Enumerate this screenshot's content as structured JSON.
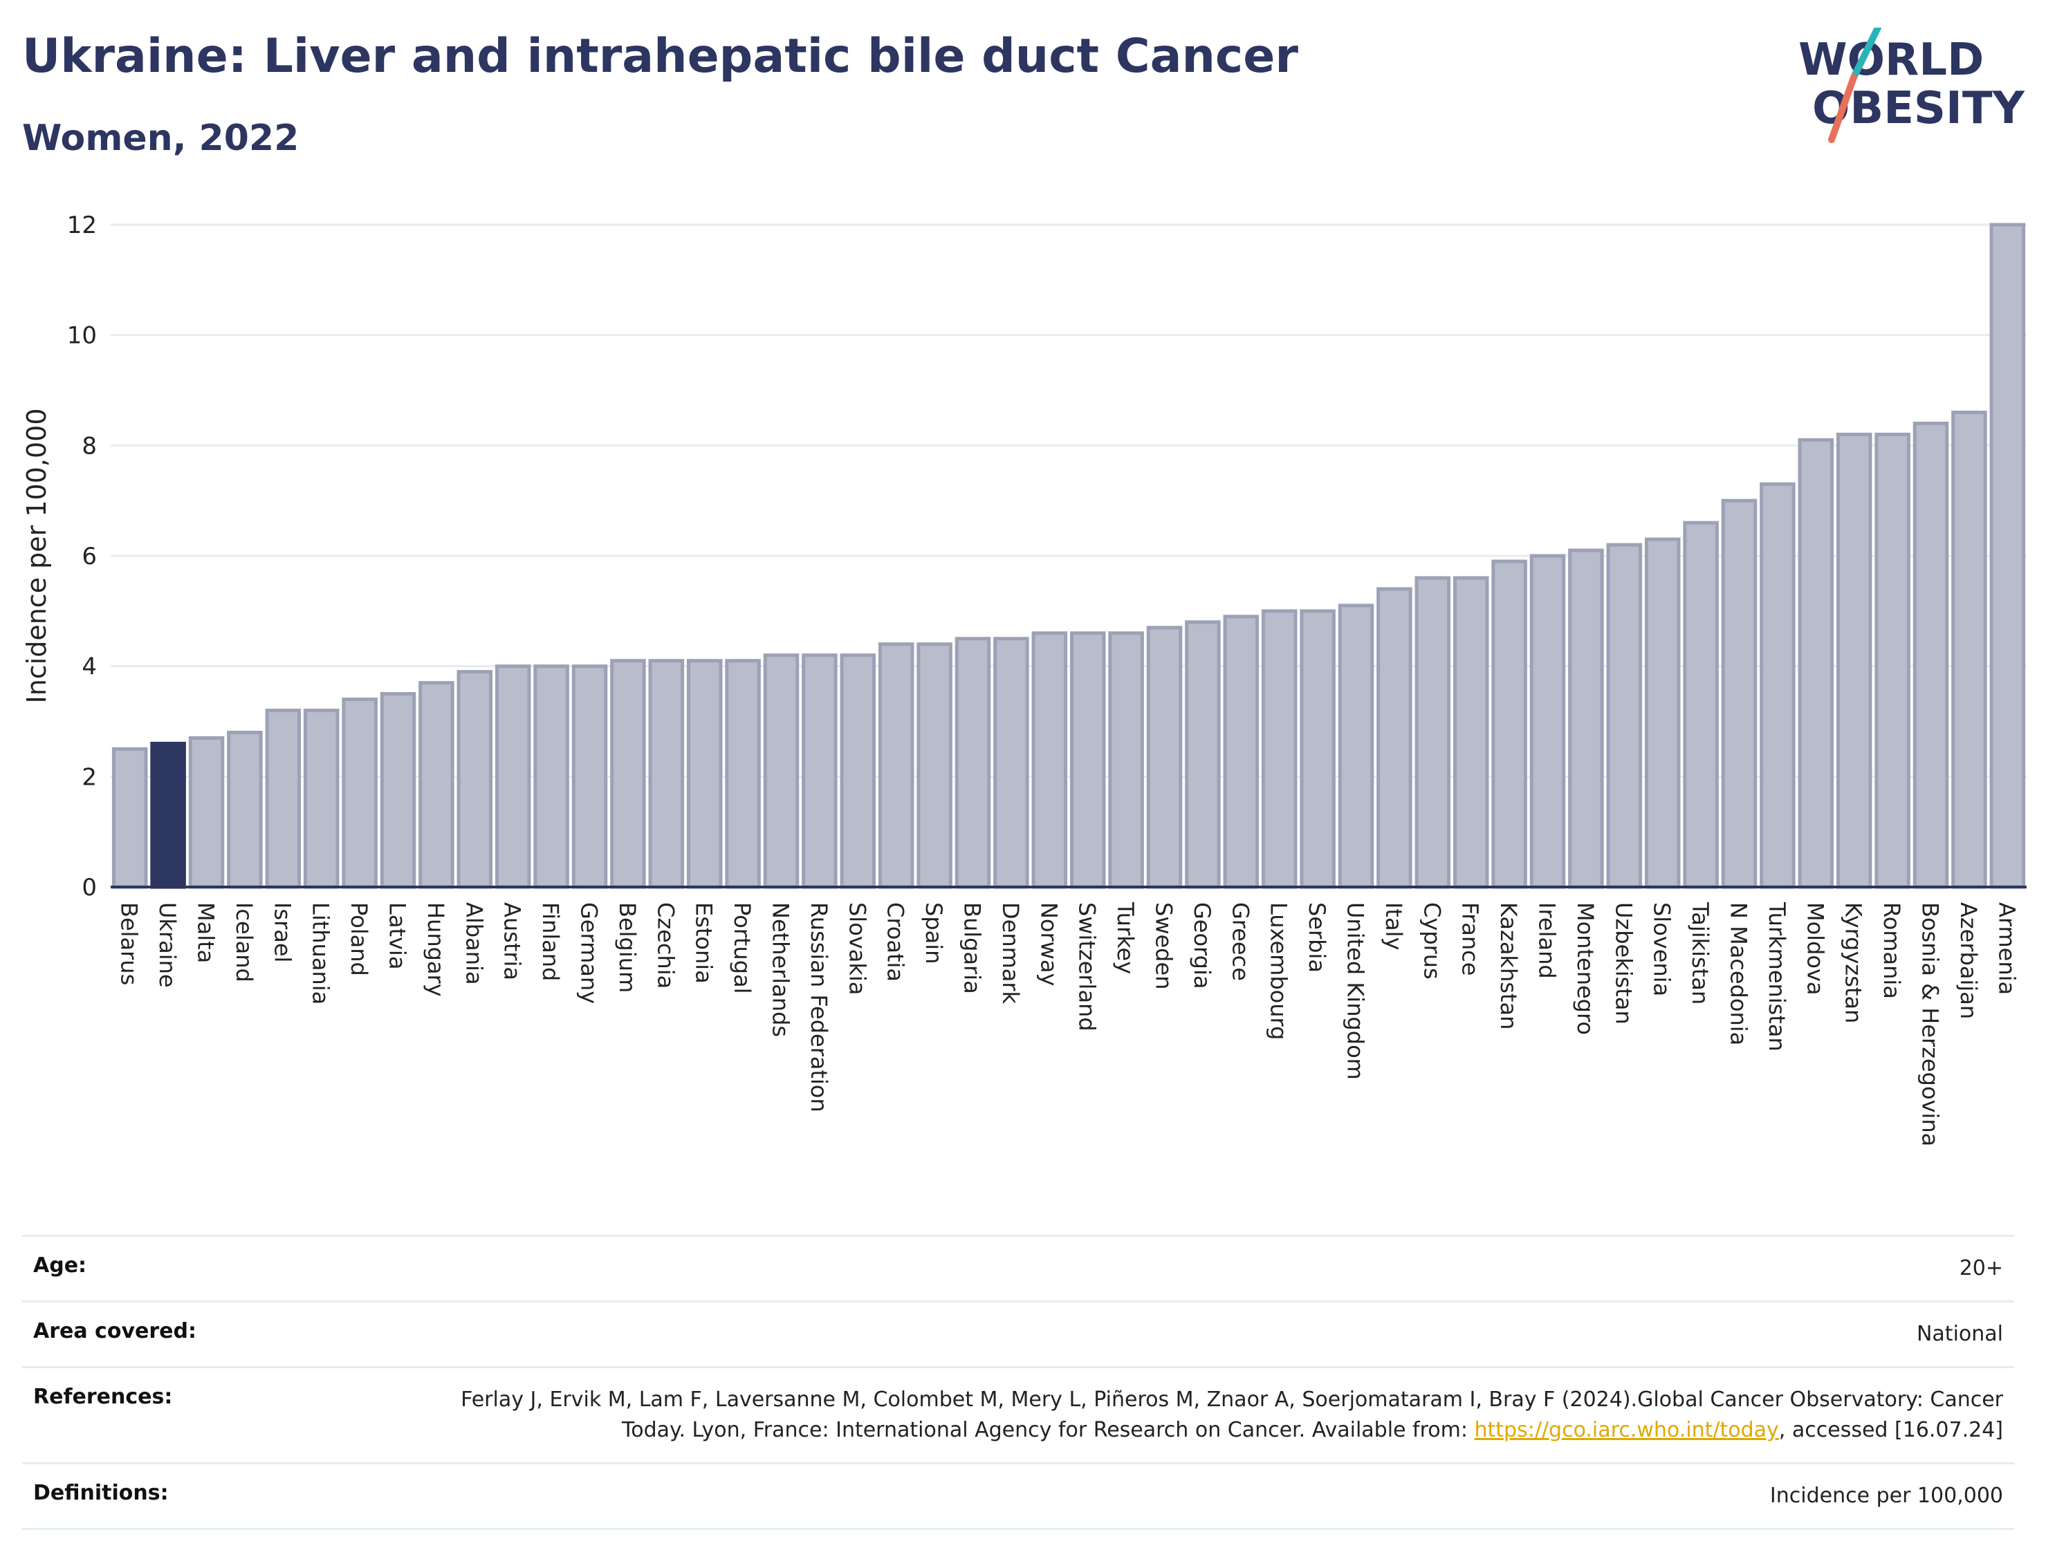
{
  "header": {
    "title": "Ukraine: Liver and intrahepatic bile duct Cancer",
    "subtitle": "Women, 2022"
  },
  "logo": {
    "line1": "WORLD",
    "line2": "OBESITY",
    "colors": {
      "slash_top": "#2ab3b8",
      "slash_bottom": "#e8705a"
    }
  },
  "chart_data": {
    "type": "bar",
    "title": "Ukraine: Liver and intrahepatic bile duct Cancer",
    "subtitle": "Women, 2022",
    "xlabel": "",
    "ylabel": "Incidence per 100,000",
    "ylim": [
      0,
      12
    ],
    "yticks": [
      0,
      2,
      4,
      6,
      8,
      10,
      12
    ],
    "grid": true,
    "highlight": "Ukraine",
    "colors": {
      "bar": "#b8bccb",
      "bar_edge": "#9ca1b6",
      "highlight": "#2d3561"
    },
    "categories": [
      "Belarus",
      "Ukraine",
      "Malta",
      "Iceland",
      "Israel",
      "Lithuania",
      "Poland",
      "Latvia",
      "Hungary",
      "Albania",
      "Austria",
      "Finland",
      "Germany",
      "Belgium",
      "Czechia",
      "Estonia",
      "Portugal",
      "Netherlands",
      "Russian Federation",
      "Slovakia",
      "Croatia",
      "Spain",
      "Bulgaria",
      "Denmark",
      "Norway",
      "Switzerland",
      "Turkey",
      "Sweden",
      "Georgia",
      "Greece",
      "Luxembourg",
      "Serbia",
      "United Kingdom",
      "Italy",
      "Cyprus",
      "France",
      "Kazakhstan",
      "Ireland",
      "Montenegro",
      "Uzbekistan",
      "Slovenia",
      "Tajikistan",
      "N Macedonia",
      "Turkmenistan",
      "Moldova",
      "Kyrgyzstan",
      "Romania",
      "Bosnia & Herzegovina",
      "Azerbaijan",
      "Armenia"
    ],
    "values": [
      2.5,
      2.6,
      2.7,
      2.8,
      3.2,
      3.2,
      3.4,
      3.5,
      3.7,
      3.9,
      4.0,
      4.0,
      4.0,
      4.1,
      4.1,
      4.1,
      4.1,
      4.2,
      4.2,
      4.2,
      4.4,
      4.4,
      4.5,
      4.5,
      4.6,
      4.6,
      4.6,
      4.7,
      4.8,
      4.9,
      5.0,
      5.0,
      5.1,
      5.4,
      5.6,
      5.6,
      5.9,
      6.0,
      6.1,
      6.2,
      6.3,
      6.6,
      7.0,
      7.3,
      8.1,
      8.2,
      8.2,
      8.4,
      8.6,
      12.0
    ]
  },
  "meta": {
    "age_label": "Age:",
    "age_value": "20+",
    "area_label": "Area covered:",
    "area_value": "National",
    "references_label": "References:",
    "references_text": "Ferlay J, Ervik M, Lam F, Laversanne M, Colombet M, Mery L, Piñeros M, Znaor A, Soerjomataram I, Bray F (2024).Global Cancer Observatory: Cancer Today. Lyon, France: International Agency for Research on Cancer. Available from: ",
    "references_link": "https://gco.iarc.who.int/today",
    "references_tail": ", accessed [16.07.24]",
    "definitions_label": "Definitions:",
    "definitions_value": "Incidence per 100,000"
  }
}
